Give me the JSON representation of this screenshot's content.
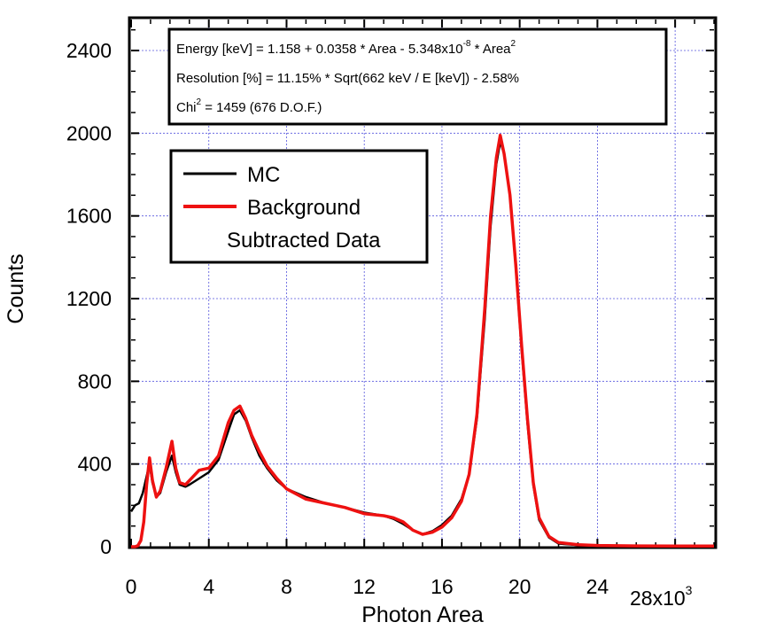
{
  "chart_data": {
    "type": "line",
    "xlabel": "Photon Area",
    "ylabel": "Counts",
    "x_multiplier_label": "28x10",
    "x_multiplier_exp": "3",
    "xlim": [
      0,
      30
    ],
    "ylim": [
      0,
      2550
    ],
    "xticks": [
      0,
      4,
      8,
      12,
      16,
      20,
      24
    ],
    "xtick_labels": [
      "0",
      "4",
      "8",
      "12",
      "16",
      "20",
      "24"
    ],
    "yticks": [
      0,
      400,
      800,
      1200,
      1600,
      2000,
      2400
    ],
    "ytick_labels": [
      "0",
      "400",
      "800",
      "1200",
      "1600",
      "2000",
      "2400"
    ],
    "grid": true,
    "legend_position": "upper-left",
    "series": [
      {
        "name": "MC",
        "color": "#000000",
        "x": [
          0.0,
          0.2,
          0.4,
          0.6,
          0.8,
          0.95,
          1.1,
          1.3,
          1.5,
          1.8,
          2.1,
          2.3,
          2.5,
          2.8,
          3.0,
          3.5,
          4.0,
          4.5,
          5.0,
          5.3,
          5.6,
          5.9,
          6.2,
          6.6,
          7.0,
          7.5,
          8.0,
          9.0,
          10.0,
          11.0,
          12.0,
          13.0,
          13.5,
          14.0,
          14.5,
          15.0,
          15.5,
          16.0,
          16.5,
          17.0,
          17.4,
          17.8,
          18.2,
          18.5,
          18.8,
          19.0,
          19.2,
          19.5,
          19.8,
          20.1,
          20.4,
          20.7,
          21.0,
          21.5,
          22.0,
          23.0,
          24.0,
          26.0,
          28.0,
          30.0
        ],
        "y": [
          170,
          200,
          210,
          260,
          340,
          400,
          310,
          240,
          260,
          360,
          440,
          360,
          300,
          290,
          300,
          330,
          360,
          420,
          560,
          640,
          660,
          610,
          530,
          440,
          380,
          320,
          280,
          240,
          210,
          190,
          165,
          150,
          135,
          110,
          80,
          60,
          75,
          105,
          150,
          230,
          350,
          620,
          1100,
          1550,
          1850,
          1960,
          1900,
          1700,
          1350,
          950,
          600,
          300,
          130,
          45,
          15,
          8,
          5,
          3,
          2,
          2
        ]
      },
      {
        "name": "Background Subtracted Data",
        "color": "#ee1111",
        "x": [
          0.0,
          0.2,
          0.35,
          0.5,
          0.65,
          0.8,
          0.95,
          1.1,
          1.3,
          1.5,
          1.8,
          2.1,
          2.3,
          2.5,
          2.8,
          3.0,
          3.5,
          4.0,
          4.5,
          5.0,
          5.3,
          5.6,
          5.9,
          6.2,
          6.6,
          7.0,
          7.5,
          8.0,
          9.0,
          10.0,
          11.0,
          12.0,
          13.0,
          13.5,
          14.0,
          14.5,
          15.0,
          15.5,
          16.0,
          16.5,
          17.0,
          17.4,
          17.8,
          18.2,
          18.5,
          18.8,
          19.0,
          19.2,
          19.5,
          19.8,
          20.1,
          20.4,
          20.7,
          21.0,
          21.5,
          22.0,
          23.0,
          24.0,
          26.0,
          28.0,
          30.0
        ],
        "y": [
          0,
          0,
          5,
          30,
          120,
          300,
          430,
          320,
          240,
          270,
          380,
          510,
          380,
          310,
          300,
          320,
          370,
          380,
          440,
          600,
          660,
          680,
          620,
          540,
          460,
          390,
          330,
          280,
          230,
          210,
          190,
          160,
          150,
          140,
          120,
          80,
          60,
          70,
          95,
          140,
          220,
          350,
          640,
          1150,
          1600,
          1880,
          1990,
          1900,
          1700,
          1360,
          970,
          620,
          310,
          140,
          50,
          20,
          10,
          6,
          4,
          3,
          3
        ]
      }
    ],
    "annotation": {
      "line1_a": "Energy [keV] = 1.158 + 0.0358 * Area - 5.348x10",
      "line1_sup1": "-8",
      "line1_b": " * Area",
      "line1_sup2": "2",
      "line2": "Resolution [%] = 11.15% * Sqrt(662 keV / E [keV]) - 2.58%",
      "line3_a": "Chi",
      "line3_sup": "2",
      "line3_b": " = 1459 (676 D.O.F.)"
    },
    "legend": {
      "mc_label": "MC",
      "data_label_line1": "Background",
      "data_label_line2": "Subtracted Data"
    }
  }
}
